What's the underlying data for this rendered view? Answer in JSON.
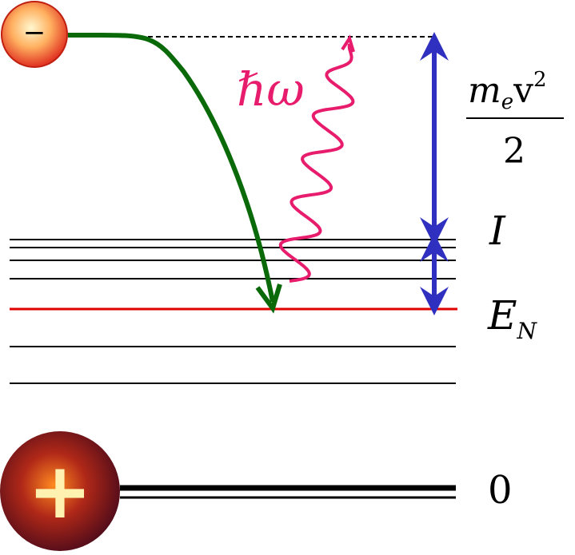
{
  "electron": {
    "label": "−"
  },
  "nucleus": {
    "label": "+"
  },
  "photon": {
    "label": "ℏω"
  },
  "labels": {
    "kinetic_energy": {
      "mass": "m",
      "mass_subscript": "e",
      "velocity": "v",
      "power": "2",
      "denominator": "2"
    },
    "ionization": "I",
    "level": {
      "symbol": "E",
      "subscript": "N"
    },
    "ground": "0"
  }
}
